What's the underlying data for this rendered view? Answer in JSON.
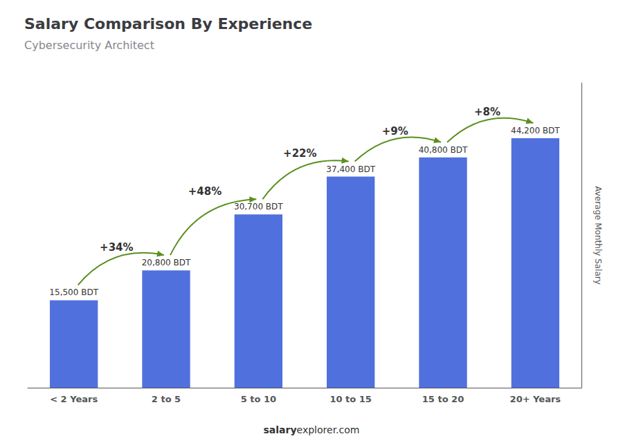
{
  "chart_data": {
    "type": "bar",
    "title": "Salary Comparison By Experience",
    "subtitle": "Cybersecurity Architect",
    "ylabel": "Average Monthly Salary",
    "categories": [
      "< 2 Years",
      "2 to 5",
      "5 to 10",
      "10 to 15",
      "15 to 20",
      "20+ Years"
    ],
    "values": [
      15500,
      20800,
      30700,
      37400,
      40800,
      44200
    ],
    "value_labels": [
      "15,500 BDT",
      "20,800 BDT",
      "30,700 BDT",
      "37,400 BDT",
      "40,800 BDT",
      "44,200 BDT"
    ],
    "data_labels": true,
    "annotations": [
      "+34%",
      "+48%",
      "+22%",
      "+9%",
      "+8%"
    ],
    "footer": [
      "salary",
      "explorer.com"
    ],
    "ylim": [
      0,
      54000
    ],
    "grid": false,
    "tick_labels": "x"
  }
}
